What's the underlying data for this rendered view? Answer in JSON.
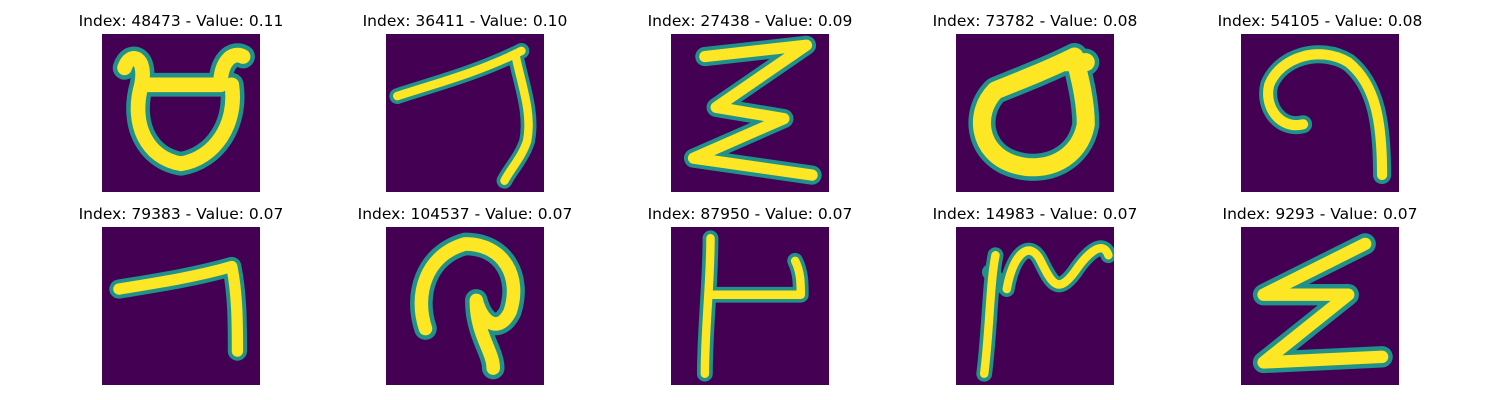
{
  "colors": {
    "background": "#440154",
    "stroke_edge": "#21918c",
    "stroke_core": "#fde725"
  },
  "panels": [
    {
      "title": "Index: 48473 - Value: 0.11",
      "glyph": "cup-shape-icon"
    },
    {
      "title": "Index: 36411 - Value: 0.10",
      "glyph": "hook-stroke-icon"
    },
    {
      "title": "Index: 27438 - Value: 0.09",
      "glyph": "zigzag-sigma-icon"
    },
    {
      "title": "Index: 73782 - Value: 0.08",
      "glyph": "loop-d-icon"
    },
    {
      "title": "Index: 54105 - Value: 0.08",
      "glyph": "spiral-hook-icon"
    },
    {
      "title": "Index: 79383 - Value: 0.07",
      "glyph": "seven-stroke-icon"
    },
    {
      "title": "Index: 104537 - Value: 0.07",
      "glyph": "arch-loop-icon"
    },
    {
      "title": "Index: 87950 - Value: 0.07",
      "glyph": "flag-stroke-icon"
    },
    {
      "title": "Index: 14983 - Value: 0.07",
      "glyph": "wave-stroke-icon"
    },
    {
      "title": "Index: 9293 - Value: 0.07",
      "glyph": "zigzag-z-icon"
    }
  ]
}
